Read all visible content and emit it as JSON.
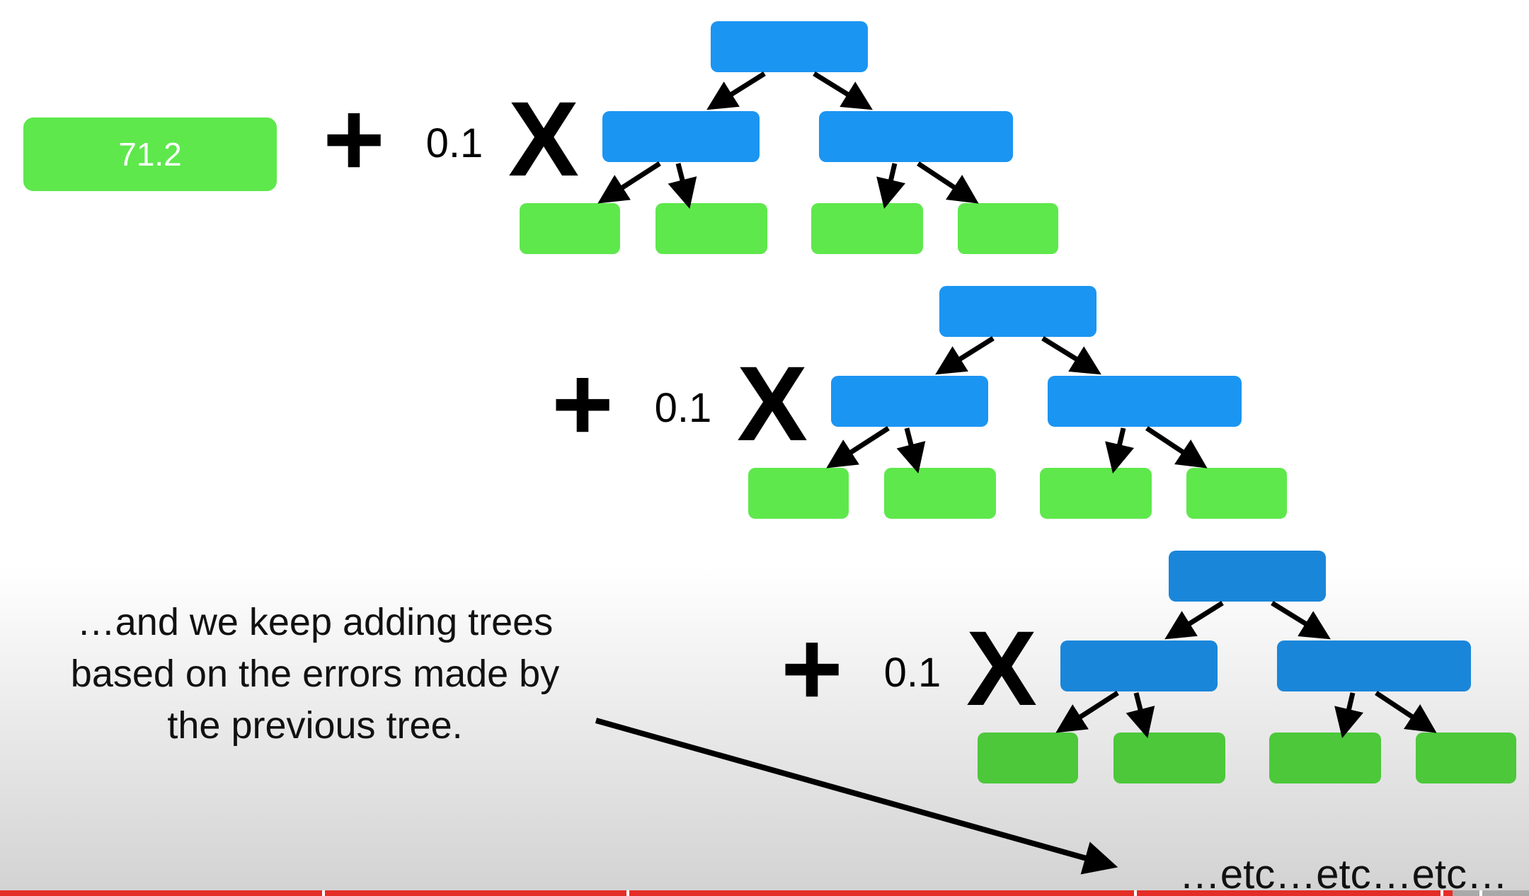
{
  "initial_prediction": "71.2",
  "terms": [
    {
      "plus": "+",
      "learning_rate": "0.1",
      "times": "X"
    },
    {
      "plus": "+",
      "learning_rate": "0.1",
      "times": "X"
    },
    {
      "plus": "+",
      "learning_rate": "0.1",
      "times": "X"
    }
  ],
  "caption": {
    "lines": [
      "…and we keep adding trees",
      "based on the errors made by",
      "the previous tree."
    ]
  },
  "continuation": "…etc…etc…etc…",
  "colors": {
    "leaf": "#5ee84c",
    "leaf_dim": "#4cc83a",
    "branch": "#1b95f2",
    "branch_dim": "#1a86da",
    "arrow": "#000000",
    "progress": "#e52d27"
  },
  "video_progress": 0.95
}
